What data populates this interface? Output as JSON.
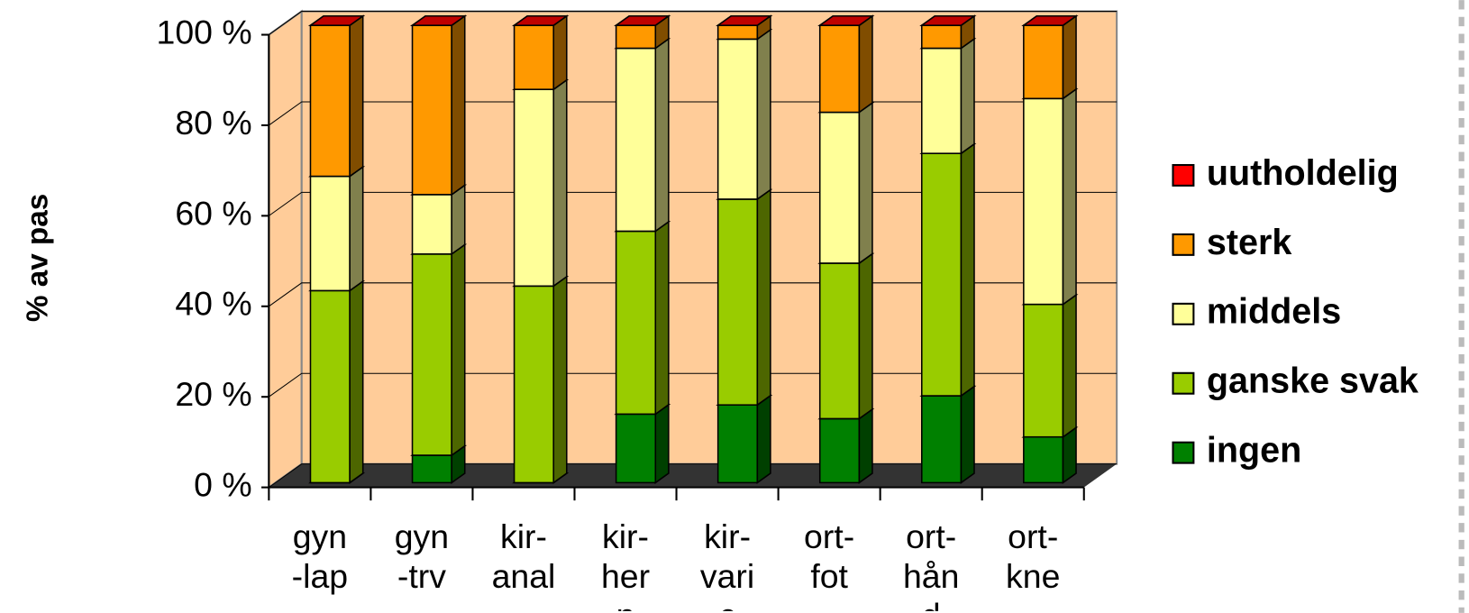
{
  "chart_data": {
    "type": "bar3d-stacked",
    "y_label": "% av pas",
    "categories": [
      "gyn-lap",
      "gyn-trv",
      "kir-anal",
      "kir-hern",
      "kir-varic",
      "ort-fot",
      "ort-hånd",
      "ort-kne"
    ],
    "series": [
      {
        "name": "ingen",
        "color": "#008000",
        "values": [
          0,
          6,
          0,
          15,
          17,
          14,
          19,
          10
        ]
      },
      {
        "name": "ganske svak",
        "color": "#99CC00",
        "values": [
          42,
          44,
          43,
          40,
          45,
          34,
          53,
          29
        ]
      },
      {
        "name": "middels",
        "color": "#FFFF99",
        "values": [
          25,
          13,
          43,
          40,
          35,
          33,
          23,
          45
        ]
      },
      {
        "name": "sterk",
        "color": "#FF9900",
        "values": [
          33,
          37,
          14,
          5,
          3,
          19,
          5,
          16
        ]
      },
      {
        "name": "uutholdelig",
        "color": "#FF0000",
        "values": [
          0,
          0,
          0,
          0,
          0,
          0,
          0,
          0
        ]
      }
    ],
    "ylim": [
      0,
      100
    ],
    "yticks": [
      {
        "value": 0,
        "label": "0 %"
      },
      {
        "value": 20,
        "label": "20 %"
      },
      {
        "value": 40,
        "label": "40 %"
      },
      {
        "value": 60,
        "label": "60 %"
      },
      {
        "value": 80,
        "label": "80 %"
      },
      {
        "value": 100,
        "label": "100 %"
      }
    ],
    "grid": true,
    "stacked": true,
    "legend": "right",
    "wall_color": "#FFCC99",
    "floor_color": "#333333"
  }
}
